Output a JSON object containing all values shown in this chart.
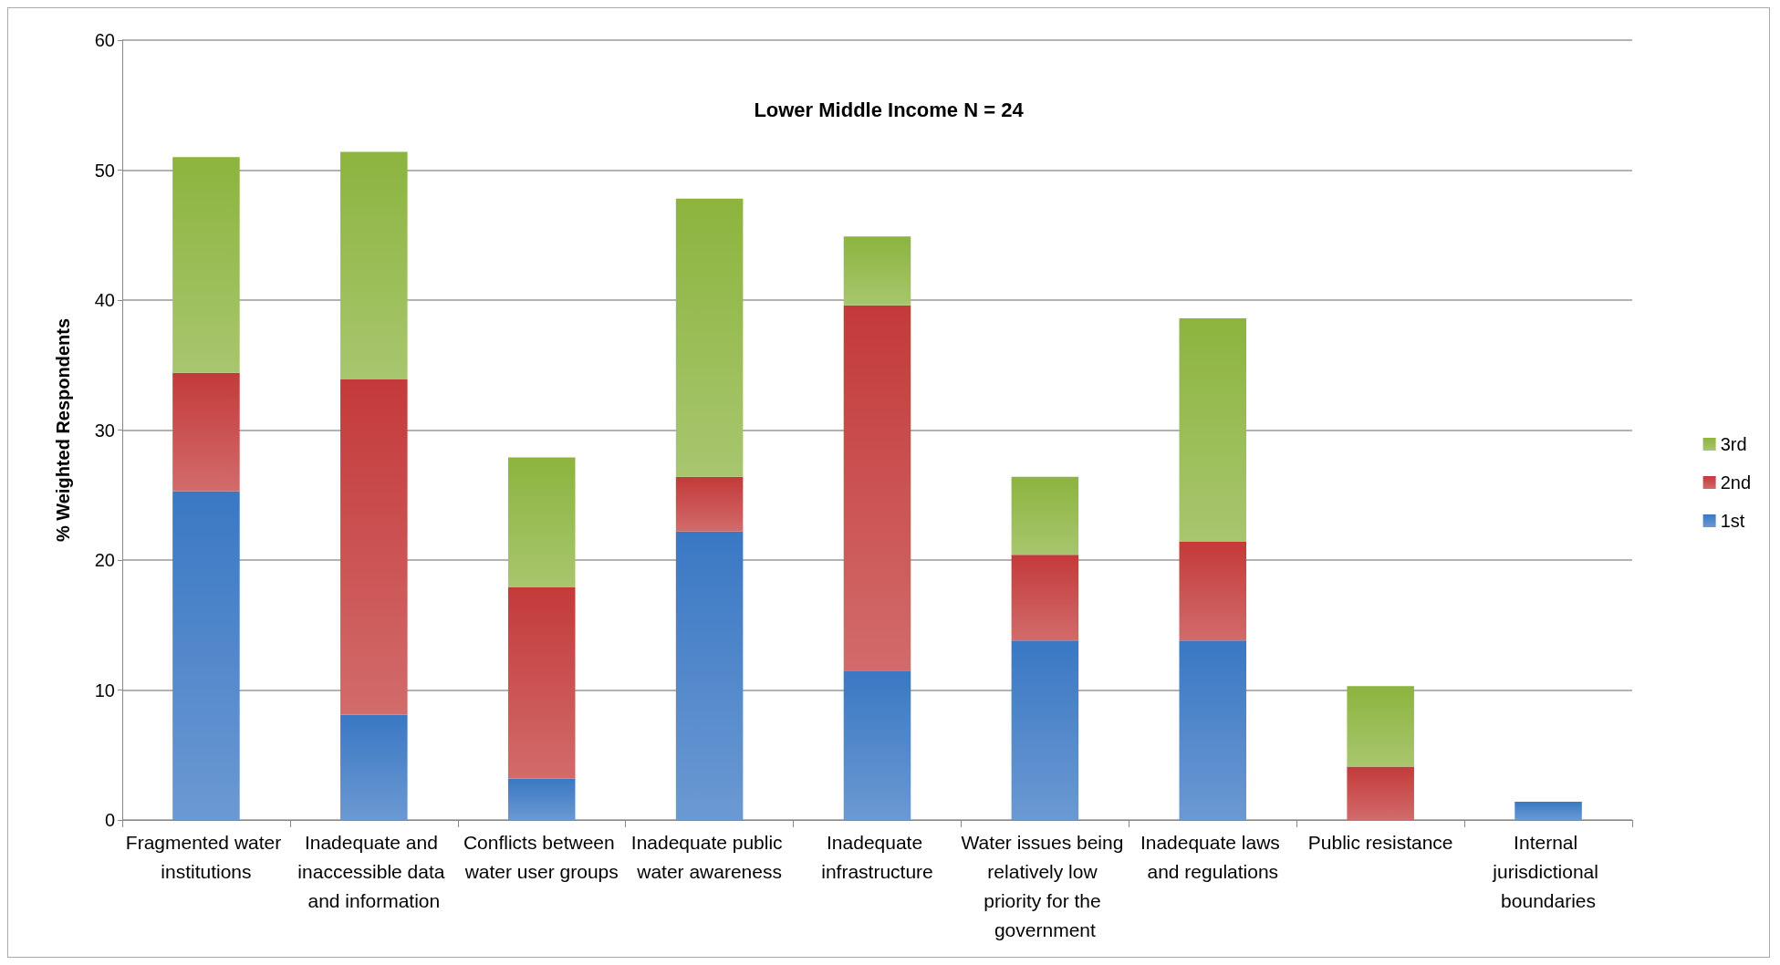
{
  "chart_data": {
    "type": "bar",
    "title": "Lower Middle Income N = 24",
    "ylabel": "% Weighted Respondents",
    "categories": [
      "Fragmented water institutions",
      "Inadequate and inaccessible data and information",
      "Conflicts between water user groups",
      "Inadequate public water awareness",
      "Inadequate infrastructure",
      "Water issues being relatively low priority for the government",
      "Inadequate laws and regulations",
      "Public resistance",
      "Internal jurisdictional boundaries"
    ],
    "series": [
      {
        "name": "1st",
        "color": "#3a78c4",
        "values": [
          25.3,
          8.1,
          3.2,
          22.2,
          11.5,
          13.8,
          13.8,
          0,
          1.4
        ]
      },
      {
        "name": "2nd",
        "color": "#c43a3a",
        "values": [
          9.1,
          25.8,
          14.7,
          4.2,
          28.1,
          6.6,
          7.6,
          4.1,
          0
        ]
      },
      {
        "name": "3rd",
        "color": "#8cb43e",
        "values": [
          16.6,
          17.5,
          10.0,
          21.4,
          5.3,
          6.0,
          17.2,
          6.2,
          0
        ]
      }
    ],
    "stacked": true,
    "ylim": [
      0,
      60
    ],
    "yticks": [
      0,
      10,
      20,
      30,
      40,
      50,
      60
    ],
    "grid": "y",
    "legend": "right"
  }
}
